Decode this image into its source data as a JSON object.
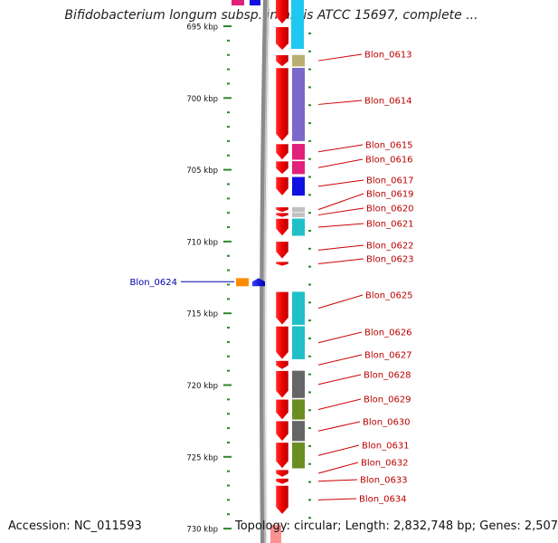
{
  "header": {
    "title": "Bifidobacterium longum subsp. infantis ATCC 15697, complete ..."
  },
  "footer": {
    "accession": "Accession: NC_011593",
    "topology": "Topology: circular; Length: 2,832,748 bp; Genes: 2,507"
  },
  "axis": {
    "ticks": [
      {
        "kbp": 695,
        "label": "695 kbp"
      },
      {
        "kbp": 700,
        "label": "700 kbp"
      },
      {
        "kbp": 705,
        "label": "705 kbp"
      },
      {
        "kbp": 710,
        "label": "710 kbp"
      },
      {
        "kbp": 715,
        "label": "715 kbp"
      },
      {
        "kbp": 720,
        "label": "720 kbp"
      },
      {
        "kbp": 725,
        "label": "725 kbp"
      },
      {
        "kbp": 730,
        "label": "730 kbp"
      }
    ]
  },
  "genes": [
    {
      "name": "Blon_0613",
      "strand": "-",
      "start_kbp": 697.0,
      "end_kbp": 697.8,
      "cog_color": "#b8b070"
    },
    {
      "name": "Blon_0614",
      "strand": "-",
      "start_kbp": 697.9,
      "end_kbp": 703.0,
      "cog_color": "#7b68c8"
    },
    {
      "name": "Blon_0615",
      "strand": "-",
      "start_kbp": 703.2,
      "end_kbp": 704.3,
      "cog_color": "#e0207a"
    },
    {
      "name": "Blon_0616",
      "strand": "-",
      "start_kbp": 704.4,
      "end_kbp": 705.3,
      "cog_color": "#e0207a"
    },
    {
      "name": "Blon_0617",
      "strand": "-",
      "start_kbp": 705.5,
      "end_kbp": 706.8,
      "cog_color": "#1010e0"
    },
    {
      "name": "Blon_0619",
      "strand": "-",
      "start_kbp": 707.6,
      "end_kbp": 707.95,
      "cog_color": "#c0c0c0"
    },
    {
      "name": "Blon_0620",
      "strand": "-",
      "start_kbp": 708.0,
      "end_kbp": 708.3,
      "cog_color": "#c0c0c0"
    },
    {
      "name": "Blon_0621",
      "strand": "-",
      "start_kbp": 708.4,
      "end_kbp": 709.6,
      "cog_color": "#20c0c8"
    },
    {
      "name": "Blon_0622",
      "strand": "-",
      "start_kbp": 710.0,
      "end_kbp": 711.2,
      "cog_color": "#e00000"
    },
    {
      "name": "Blon_0623",
      "strand": "-",
      "start_kbp": 711.4,
      "end_kbp": 711.7,
      "cog_color": "#e00000"
    },
    {
      "name": "Blon_0624",
      "strand": "+",
      "start_kbp": 712.8,
      "end_kbp": 713.4,
      "cog_color": "#1010e0"
    },
    {
      "name": "Blon_0625",
      "strand": "-",
      "start_kbp": 713.5,
      "end_kbp": 715.8,
      "cog_color": "#20c0c8"
    },
    {
      "name": "Blon_0626",
      "strand": "-",
      "start_kbp": 715.9,
      "end_kbp": 718.2,
      "cog_color": "#20c0c8"
    },
    {
      "name": "Blon_0627",
      "strand": "-",
      "start_kbp": 718.3,
      "end_kbp": 718.9,
      "cog_color": "#e00000"
    },
    {
      "name": "Blon_0628",
      "strand": "-",
      "start_kbp": 719.0,
      "end_kbp": 720.9,
      "cog_color": "#666666"
    },
    {
      "name": "Blon_0629",
      "strand": "-",
      "start_kbp": 721.0,
      "end_kbp": 722.4,
      "cog_color": "#6b8e23"
    },
    {
      "name": "Blon_0630",
      "strand": "-",
      "start_kbp": 722.5,
      "end_kbp": 723.9,
      "cog_color": "#666666"
    },
    {
      "name": "Blon_0631",
      "strand": "-",
      "start_kbp": 724.0,
      "end_kbp": 725.8,
      "cog_color": "#6b8e23"
    },
    {
      "name": "Blon_0632",
      "strand": "-",
      "start_kbp": 725.9,
      "end_kbp": 726.4,
      "cog_color": "#e00000"
    },
    {
      "name": "Blon_0633",
      "strand": "-",
      "start_kbp": 726.5,
      "end_kbp": 726.9,
      "cog_color": "#e00000"
    },
    {
      "name": "Blon_0634",
      "strand": "-",
      "start_kbp": 727.0,
      "end_kbp": 729.0,
      "cog_color": "#e00000"
    }
  ]
}
